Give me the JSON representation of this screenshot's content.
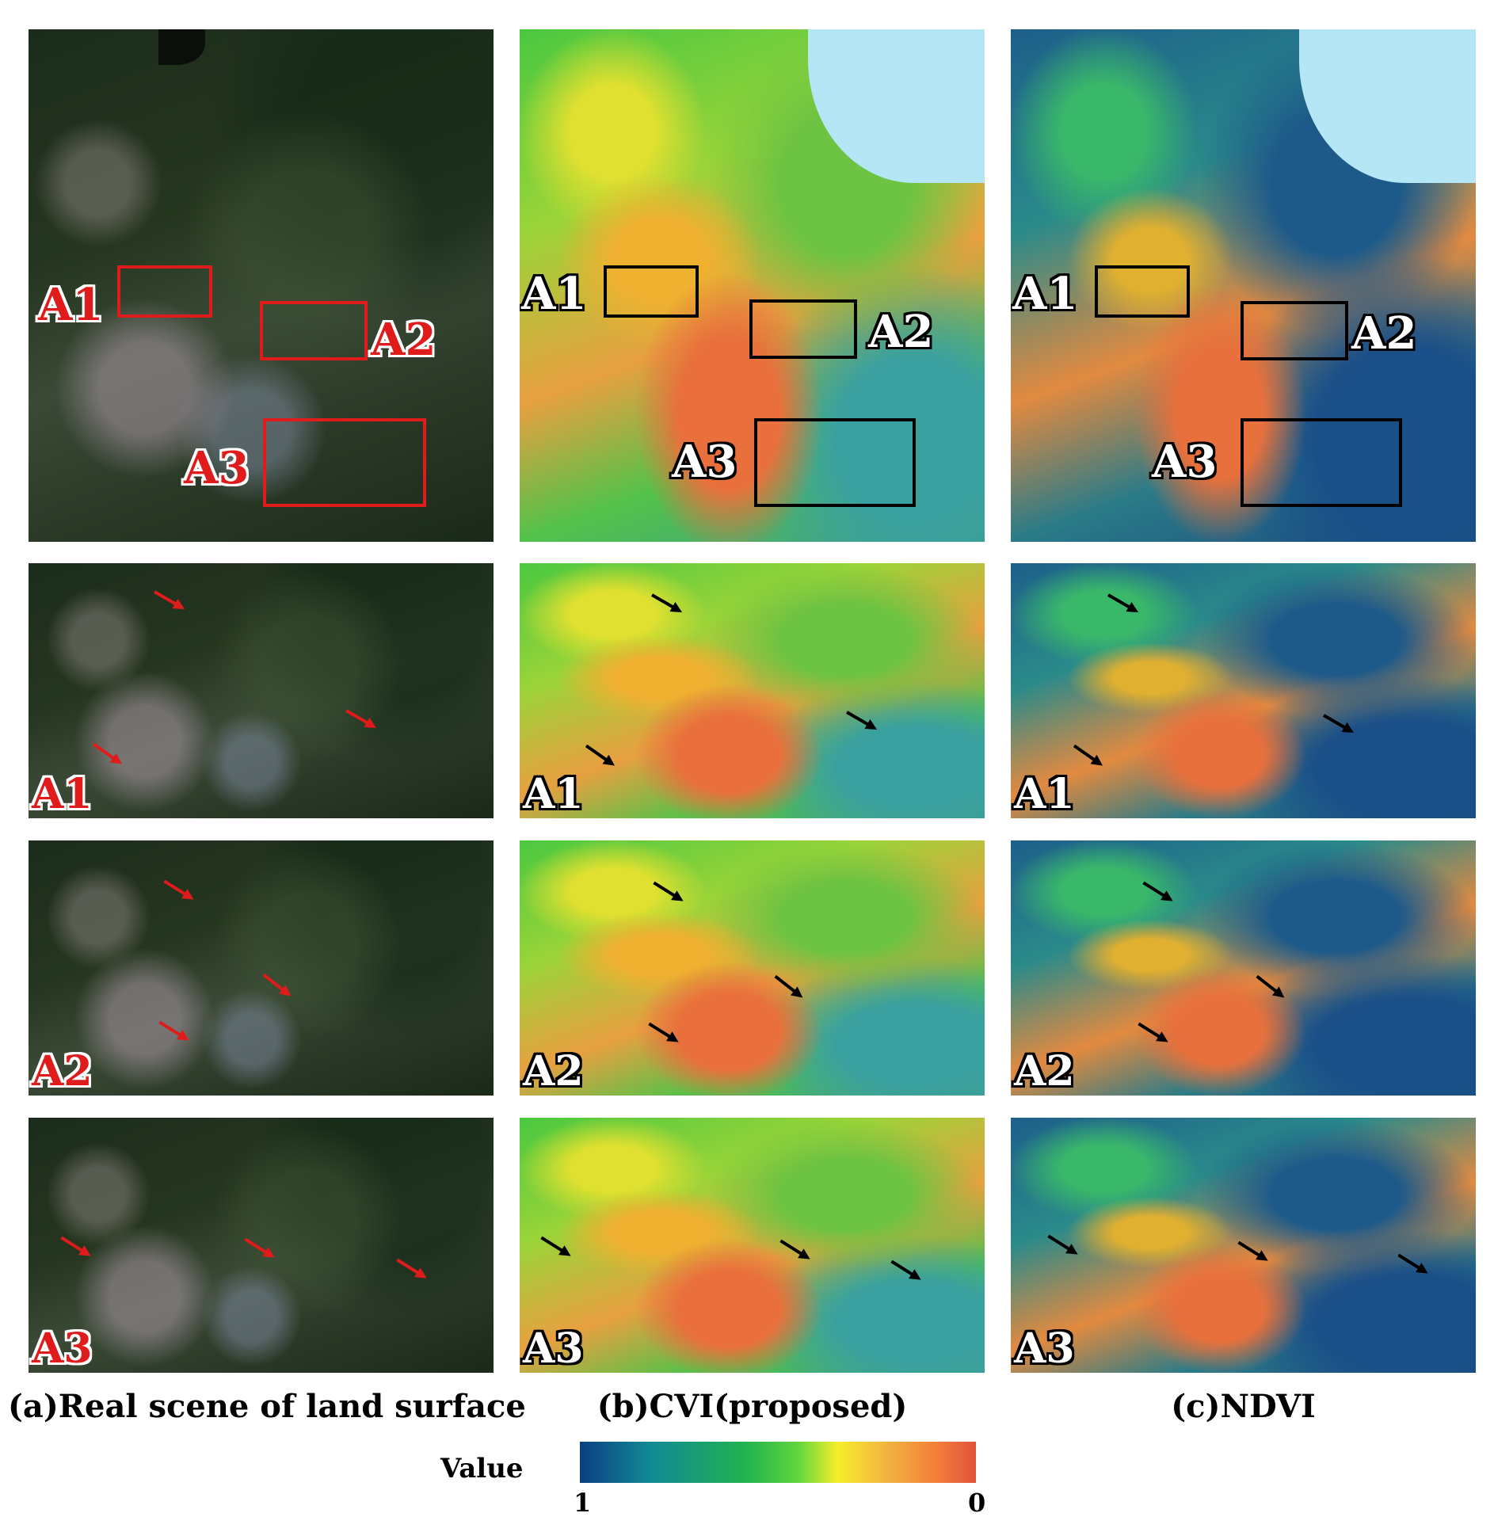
{
  "captions": {
    "a": "(a)Real scene of land surface",
    "b": "(b)CVI(proposed)",
    "c": "(c)NDVI"
  },
  "region_labels": [
    "A1",
    "A2",
    "A3"
  ],
  "legend": {
    "title": "Value",
    "min_label": "1",
    "max_label": "0",
    "colors": [
      "#0b3f82",
      "#118a95",
      "#22b24e",
      "#5fd63c",
      "#f5ef2c",
      "#f3b13f",
      "#f27f3a",
      "#e2523a"
    ]
  },
  "colors": {
    "rgb_box": "#e01b1b",
    "index_box": "#000000",
    "rgb_arrow": "#e01b1b",
    "index_arrow": "#000000",
    "water": "#b5e6f5"
  }
}
